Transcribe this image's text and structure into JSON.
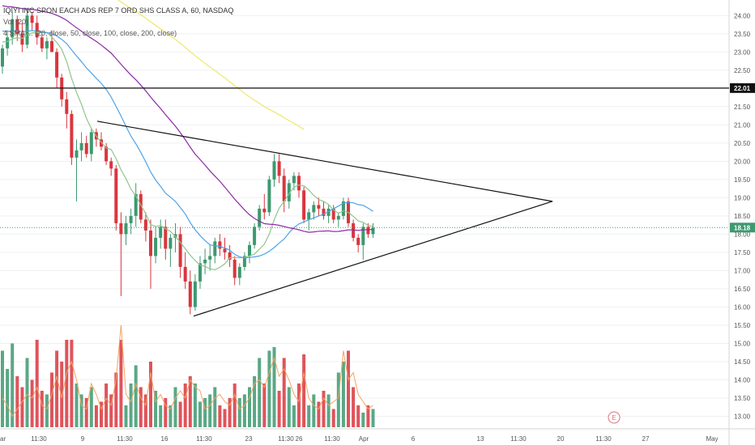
{
  "legend": {
    "title": "IQIYI INC SPON EACH ADS REP 7 ORD SHS CLASS A, 60, NASDAQ",
    "vol_label": "Vol (20)",
    "ma_label": "4 SMA ... (20, close, 50, close, 100, close, 200, close)"
  },
  "chart_data": {
    "type": "candlestick",
    "price_axis": {
      "range": [
        12.7,
        24.25
      ],
      "ticks": [
        "24.00",
        "23.50",
        "23.00",
        "22.50",
        "22.00",
        "21.50",
        "21.00",
        "20.50",
        "20.00",
        "19.50",
        "19.00",
        "18.50",
        "18.00",
        "17.50",
        "17.00",
        "16.50",
        "16.00",
        "15.50",
        "15.00",
        "14.50",
        "14.00",
        "13.50",
        "13.00"
      ],
      "last_price_label": "18.18",
      "last_price_value": 18.18,
      "horizontal_line_label": "22.01",
      "horizontal_line_value": 22.01
    },
    "time_axis": {
      "labels": [
        "ar",
        "11:30",
        "9",
        "11:30",
        "16",
        "11:30",
        "23",
        "11:30",
        "26",
        "11:30",
        "Apr",
        "6",
        "13",
        "11:30",
        "20",
        "11:30",
        "27",
        "May"
      ]
    },
    "earnings_marker": "E",
    "series": [
      {
        "name": "SMA 20",
        "color": "#8fc68a"
      },
      {
        "name": "SMA 50",
        "color": "#4da3e8"
      },
      {
        "name": "SMA 100",
        "color": "#8e2aa5"
      },
      {
        "name": "SMA 200",
        "color": "#f0e66a"
      }
    ],
    "volume_ma_color": "#f4a460",
    "up_color": "#3d9970",
    "down_color": "#d9363e",
    "trendlines": [
      {
        "from": [
          16,
          21.1
        ],
        "to": [
          97,
          18.9
        ]
      },
      {
        "from": [
          33,
          15.75
        ],
        "to": [
          97,
          18.9
        ]
      }
    ],
    "candles": [
      [
        22.6,
        23.2,
        22.4,
        23.1
      ],
      [
        23.1,
        23.6,
        22.9,
        23.4
      ],
      [
        23.4,
        24.1,
        23.2,
        23.9
      ],
      [
        23.9,
        24.0,
        23.3,
        23.5
      ],
      [
        23.5,
        23.8,
        23.0,
        23.2
      ],
      [
        23.2,
        24.2,
        23.1,
        24.0
      ],
      [
        24.0,
        24.1,
        23.6,
        23.8
      ],
      [
        23.8,
        24.0,
        23.2,
        23.4
      ],
      [
        23.4,
        23.5,
        23.0,
        23.1
      ],
      [
        23.1,
        23.4,
        22.8,
        23.3
      ],
      [
        23.3,
        23.6,
        23.0,
        23.0
      ],
      [
        23.0,
        23.1,
        22.0,
        22.3
      ],
      [
        22.3,
        22.4,
        21.5,
        21.7
      ],
      [
        21.7,
        21.9,
        20.9,
        21.3
      ],
      [
        21.3,
        21.4,
        19.9,
        20.1
      ],
      [
        20.1,
        20.6,
        18.9,
        20.3
      ],
      [
        20.3,
        20.8,
        20.0,
        20.5
      ],
      [
        20.5,
        20.7,
        20.1,
        20.2
      ],
      [
        20.2,
        20.9,
        20.0,
        20.8
      ],
      [
        20.8,
        20.9,
        20.4,
        20.6
      ],
      [
        20.6,
        20.8,
        20.3,
        20.4
      ],
      [
        20.4,
        20.5,
        19.9,
        20.0
      ],
      [
        20.0,
        20.1,
        19.6,
        19.8
      ],
      [
        19.8,
        19.9,
        18.1,
        18.3
      ],
      [
        18.3,
        18.6,
        16.3,
        18.0
      ],
      [
        18.0,
        18.5,
        17.7,
        18.3
      ],
      [
        18.3,
        18.7,
        18.0,
        18.5
      ],
      [
        18.5,
        19.4,
        18.2,
        19.1
      ],
      [
        19.1,
        19.2,
        18.3,
        18.4
      ],
      [
        18.4,
        18.6,
        17.8,
        18.1
      ],
      [
        18.1,
        18.4,
        16.5,
        17.4
      ],
      [
        17.4,
        18.2,
        17.2,
        17.9
      ],
      [
        17.9,
        18.4,
        17.6,
        18.2
      ],
      [
        18.2,
        18.4,
        17.3,
        17.6
      ],
      [
        17.6,
        18.0,
        17.1,
        17.9
      ],
      [
        17.9,
        18.3,
        17.5,
        18.0
      ],
      [
        18.0,
        18.2,
        16.8,
        17.1
      ],
      [
        17.1,
        17.5,
        16.5,
        16.7
      ],
      [
        16.7,
        17.0,
        15.8,
        16.0
      ],
      [
        16.0,
        16.9,
        15.9,
        16.7
      ],
      [
        16.7,
        17.4,
        16.5,
        17.2
      ],
      [
        17.2,
        17.6,
        16.9,
        17.3
      ],
      [
        17.3,
        17.7,
        17.0,
        17.4
      ],
      [
        17.4,
        17.9,
        17.2,
        17.8
      ],
      [
        17.8,
        18.0,
        17.4,
        17.6
      ],
      [
        17.6,
        17.9,
        17.3,
        17.5
      ],
      [
        17.5,
        17.7,
        17.1,
        17.3
      ],
      [
        17.3,
        17.4,
        16.6,
        16.8
      ],
      [
        16.8,
        17.2,
        16.6,
        17.1
      ],
      [
        17.1,
        17.5,
        17.0,
        17.4
      ],
      [
        17.4,
        17.8,
        17.2,
        17.7
      ],
      [
        17.7,
        18.3,
        17.6,
        18.2
      ],
      [
        18.2,
        18.8,
        18.1,
        18.7
      ],
      [
        18.7,
        19.1,
        18.4,
        18.6
      ],
      [
        18.6,
        19.6,
        18.5,
        19.5
      ],
      [
        19.5,
        20.2,
        19.3,
        20.0
      ],
      [
        20.0,
        20.2,
        19.4,
        19.6
      ],
      [
        19.6,
        19.8,
        18.6,
        18.9
      ],
      [
        18.9,
        19.5,
        18.7,
        19.4
      ],
      [
        19.4,
        19.7,
        19.2,
        19.6
      ],
      [
        19.6,
        19.7,
        19.0,
        19.2
      ],
      [
        19.2,
        19.3,
        18.3,
        18.4
      ],
      [
        18.4,
        18.7,
        18.1,
        18.6
      ],
      [
        18.6,
        18.9,
        18.4,
        18.8
      ],
      [
        18.8,
        19.0,
        18.5,
        18.7
      ],
      [
        18.7,
        18.9,
        18.4,
        18.5
      ],
      [
        18.5,
        18.8,
        18.3,
        18.7
      ],
      [
        18.7,
        18.8,
        18.3,
        18.4
      ],
      [
        18.4,
        18.6,
        18.2,
        18.5
      ],
      [
        18.5,
        19.0,
        18.4,
        18.9
      ],
      [
        18.9,
        19.0,
        18.2,
        18.3
      ],
      [
        18.3,
        18.4,
        17.8,
        17.9
      ],
      [
        17.9,
        18.0,
        17.5,
        17.7
      ],
      [
        17.7,
        18.3,
        17.3,
        18.2
      ],
      [
        18.2,
        18.3,
        17.9,
        18.0
      ],
      [
        18.0,
        18.3,
        17.9,
        18.18
      ]
    ],
    "volume": [
      [
        13.5,
        14.8
      ],
      [
        13.3,
        14.3
      ],
      [
        13.0,
        15.0
      ],
      [
        13.2,
        14.1
      ],
      [
        13.4,
        13.8
      ],
      [
        13.6,
        14.6
      ],
      [
        13.5,
        14.0
      ],
      [
        13.8,
        15.1
      ],
      [
        13.3,
        13.7
      ],
      [
        13.2,
        13.6
      ],
      [
        13.6,
        14.2
      ],
      [
        14.1,
        14.8
      ],
      [
        13.5,
        14.5
      ],
      [
        14.2,
        15.1
      ],
      [
        14.5,
        15.1
      ],
      [
        14.0,
        13.9
      ],
      [
        13.3,
        13.6
      ],
      [
        13.2,
        13.5
      ],
      [
        13.9,
        13.8
      ],
      [
        13.6,
        13.3
      ],
      [
        13.2,
        13.4
      ],
      [
        13.5,
        13.9
      ],
      [
        13.3,
        13.6
      ],
      [
        14.0,
        14.2
      ],
      [
        15.5,
        15.1
      ],
      [
        13.6,
        13.3
      ],
      [
        13.4,
        13.9
      ],
      [
        13.9,
        14.4
      ],
      [
        13.5,
        13.8
      ],
      [
        13.3,
        13.6
      ],
      [
        14.2,
        14.5
      ],
      [
        13.4,
        13.7
      ],
      [
        13.6,
        13.3
      ],
      [
        13.3,
        13.5
      ],
      [
        13.2,
        13.3
      ],
      [
        13.5,
        13.8
      ],
      [
        13.7,
        13.4
      ],
      [
        13.5,
        13.9
      ],
      [
        14.0,
        14.1
      ],
      [
        13.8,
        13.9
      ],
      [
        13.7,
        13.4
      ],
      [
        13.2,
        13.5
      ],
      [
        13.3,
        13.6
      ],
      [
        13.5,
        13.8
      ],
      [
        13.6,
        13.3
      ],
      [
        13.4,
        13.2
      ],
      [
        13.3,
        13.5
      ],
      [
        13.6,
        13.9
      ],
      [
        13.2,
        13.5
      ],
      [
        13.3,
        13.6
      ],
      [
        13.5,
        13.8
      ],
      [
        13.9,
        14.1
      ],
      [
        14.0,
        14.6
      ],
      [
        13.8,
        13.9
      ],
      [
        14.2,
        14.8
      ],
      [
        14.6,
        14.9
      ],
      [
        14.1,
        13.7
      ],
      [
        14.3,
        14.6
      ],
      [
        14.0,
        13.8
      ],
      [
        13.6,
        13.3
      ],
      [
        13.4,
        13.9
      ],
      [
        14.2,
        14.7
      ],
      [
        13.5,
        13.3
      ],
      [
        13.3,
        13.6
      ],
      [
        13.2,
        13.4
      ],
      [
        13.5,
        13.7
      ],
      [
        13.3,
        13.6
      ],
      [
        13.4,
        13.2
      ],
      [
        13.5,
        14.2
      ],
      [
        14.8,
        14.5
      ],
      [
        14.0,
        14.8
      ],
      [
        14.2,
        13.8
      ],
      [
        13.6,
        13.3
      ],
      [
        13.4,
        13.1
      ],
      [
        13.2,
        13.3
      ],
      [
        13.3,
        13.2
      ]
    ]
  }
}
